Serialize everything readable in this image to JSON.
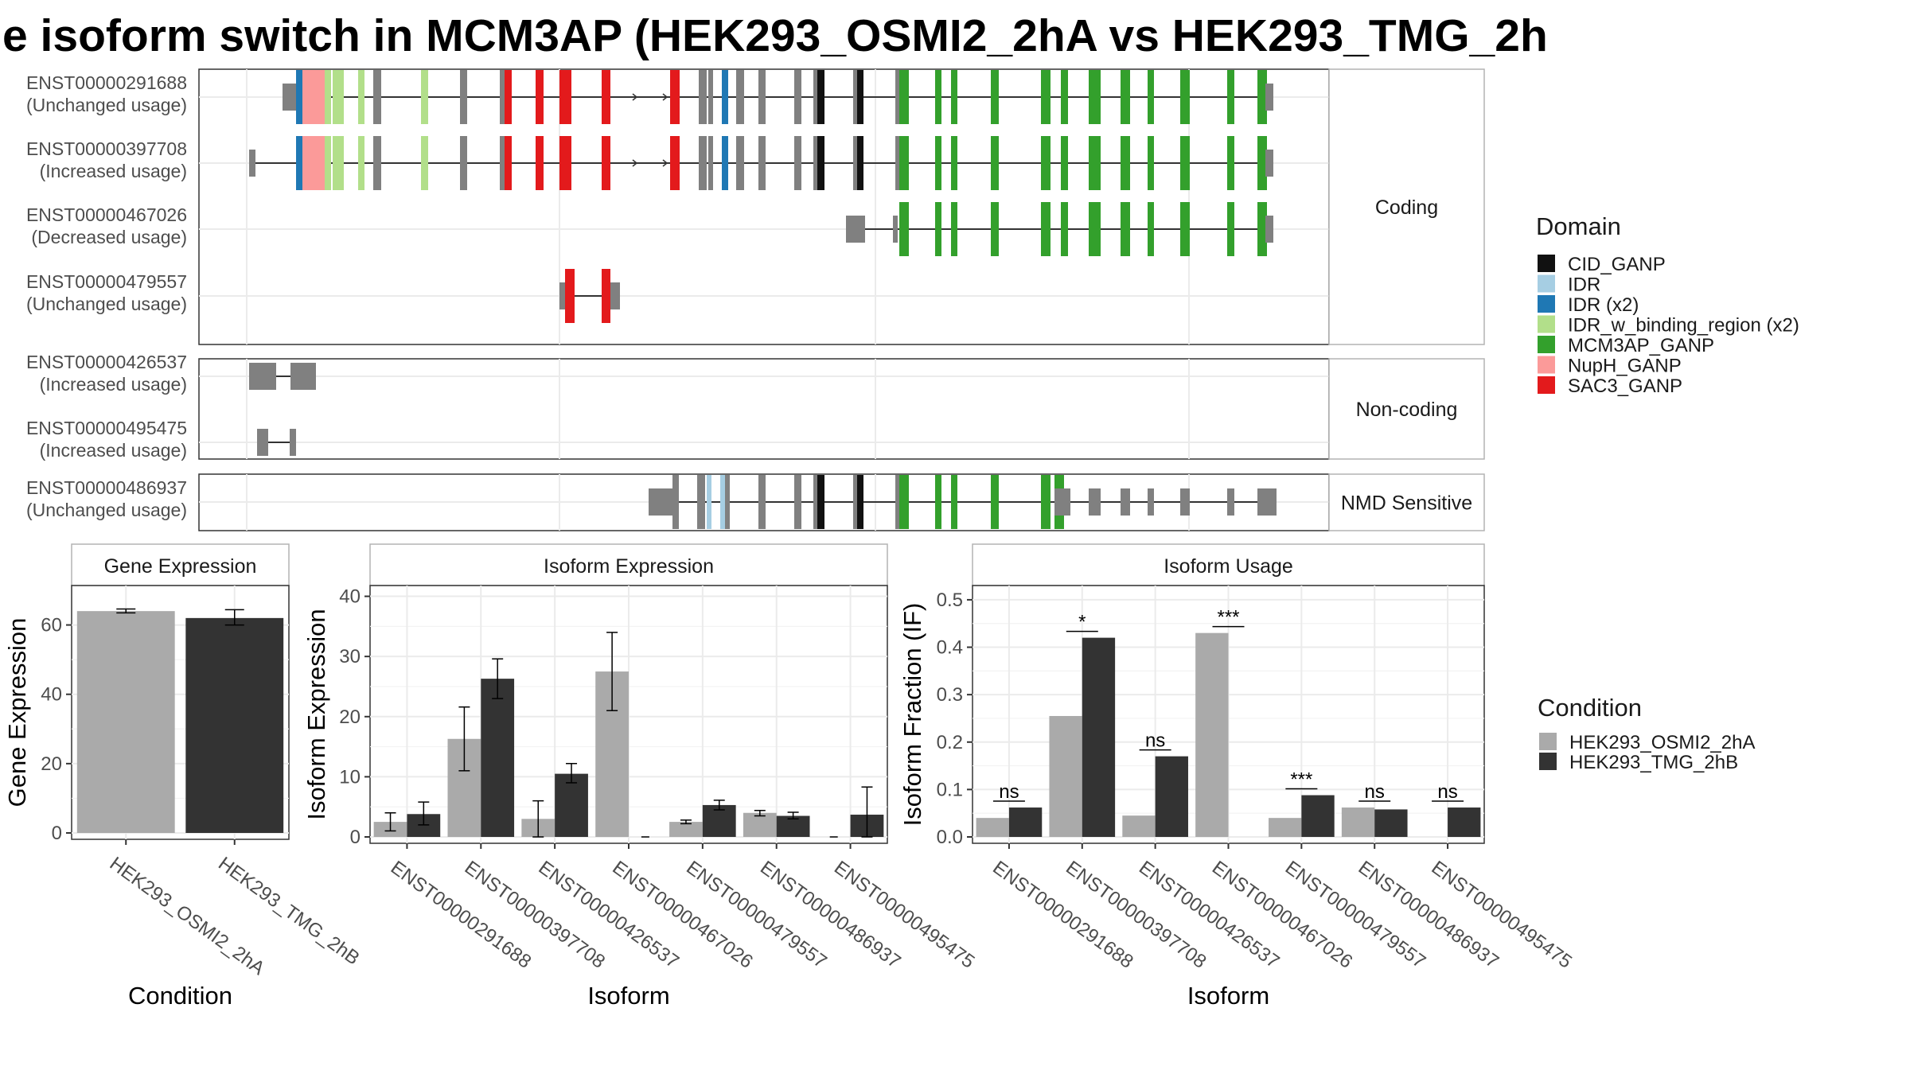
{
  "title": "e isoform switch in MCM3AP (HEK293_OSMI2_2hA vs HEK293_TMG_2h",
  "colors": {
    "CID_GANP": "#111111",
    "IDR": "#a6cee3",
    "IDR (x2)": "#1f78b4",
    "IDR_w_binding_region (x2)": "#b2df8a",
    "MCM3AP_GANP": "#33a02c",
    "NupH_GANP": "#fb9a99",
    "SAC3_GANP": "#e31a1c",
    "exon": "#808080",
    "cond1": "#aaaaaa",
    "cond2": "#333333"
  },
  "transcripts": [
    {
      "group": "Coding",
      "id": "ENST00000291688",
      "usage": "(Unchanged usage)"
    },
    {
      "group": "Coding",
      "id": "ENST00000397708",
      "usage": "(Increased usage)"
    },
    {
      "group": "Coding",
      "id": "ENST00000467026",
      "usage": "(Decreased usage)"
    },
    {
      "group": "Coding",
      "id": "ENST00000479557",
      "usage": "(Unchanged usage)"
    },
    {
      "group": "Non-coding",
      "id": "ENST00000426537",
      "usage": "(Increased usage)"
    },
    {
      "group": "Non-coding",
      "id": "ENST00000495475",
      "usage": "(Increased usage)"
    },
    {
      "group": "NMD Sensitive",
      "id": "ENST00000486937",
      "usage": "(Unchanged usage)"
    }
  ],
  "groups": [
    "Coding",
    "Non-coding",
    "NMD Sensitive"
  ],
  "legend_domain": {
    "title": "Domain",
    "items": [
      "CID_GANP",
      "IDR",
      "IDR (x2)",
      "IDR_w_binding_region (x2)",
      "MCM3AP_GANP",
      "NupH_GANP",
      "SAC3_GANP"
    ]
  },
  "legend_condition": {
    "title": "Condition",
    "items": [
      "HEK293_OSMI2_2hA",
      "HEK293_TMG_2hB"
    ]
  },
  "chart_data": [
    {
      "type": "bar",
      "title": "Gene Expression",
      "xlabel": "Condition",
      "ylabel": "Gene Expression",
      "categories": [
        "HEK293_OSMI2_2hA",
        "HEK293_TMG_2hB"
      ],
      "values": [
        64,
        62
      ],
      "errors": [
        [
          63.5,
          64.6
        ],
        [
          60,
          64.4
        ]
      ],
      "ylim": [
        0,
        70
      ],
      "yticks": [
        0,
        20,
        40,
        60
      ]
    },
    {
      "type": "bar",
      "title": "Isoform Expression",
      "xlabel": "Isoform",
      "ylabel": "Isoform Expression",
      "categories": [
        "ENST00000291688",
        "ENST00000397708",
        "ENST00000426537",
        "ENST00000467026",
        "ENST00000479557",
        "ENST00000486937",
        "ENST00000495475"
      ],
      "series": [
        {
          "name": "HEK293_OSMI2_2hA",
          "values": [
            2.5,
            16.3,
            3.0,
            27.5,
            2.5,
            4.0,
            0
          ],
          "errors": [
            [
              1,
              4
            ],
            [
              11,
              21.6
            ],
            [
              0,
              6
            ],
            [
              21,
              34
            ],
            [
              2.2,
              2.8
            ],
            [
              3.5,
              4.4
            ],
            [
              0,
              0
            ]
          ]
        },
        {
          "name": "HEK293_TMG_2hB",
          "values": [
            3.8,
            26.3,
            10.5,
            0,
            5.3,
            3.5,
            3.7
          ],
          "errors": [
            [
              2,
              5.8
            ],
            [
              23,
              29.6
            ],
            [
              9,
              12.2
            ],
            [
              0,
              0
            ],
            [
              4.5,
              6.1
            ],
            [
              3,
              4.1
            ],
            [
              0,
              8.3
            ]
          ]
        }
      ],
      "ylim": [
        0,
        41
      ],
      "yticks": [
        0,
        10,
        20,
        30,
        40
      ]
    },
    {
      "type": "bar",
      "title": "Isoform Usage",
      "xlabel": "Isoform",
      "ylabel": "Isoform Fraction (IF)",
      "categories": [
        "ENST00000291688",
        "ENST00000397708",
        "ENST00000426537",
        "ENST00000467026",
        "ENST00000479557",
        "ENST00000486937",
        "ENST00000495475"
      ],
      "series": [
        {
          "name": "HEK293_OSMI2_2hA",
          "values": [
            0.04,
            0.255,
            0.045,
            0.43,
            0.04,
            0.062,
            0
          ]
        },
        {
          "name": "HEK293_TMG_2hB",
          "values": [
            0.062,
            0.42,
            0.17,
            0,
            0.088,
            0.058,
            0.062
          ]
        }
      ],
      "significance": [
        "ns",
        "*",
        "ns",
        "***",
        "***",
        "ns",
        "ns"
      ],
      "ylim": [
        0,
        0.52
      ],
      "yticks": [
        0.0,
        0.1,
        0.2,
        0.3,
        0.4,
        0.5
      ]
    }
  ]
}
